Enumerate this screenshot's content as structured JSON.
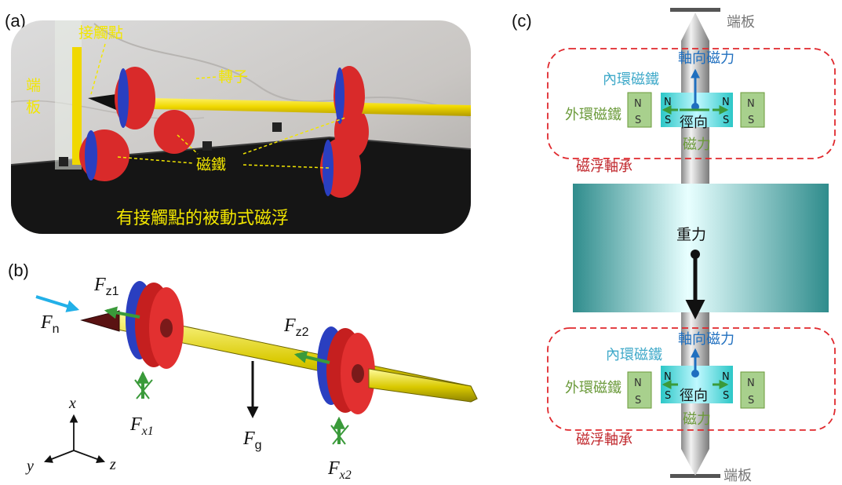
{
  "panels": {
    "a": {
      "label": "(a)",
      "contact_point": "接觸點",
      "end_plate": "端板",
      "rotor": "轉子",
      "magnets": "磁鐵",
      "caption": "有接觸點的被動式磁浮"
    },
    "b": {
      "label": "(b)",
      "forces": {
        "fn_base": "F",
        "fn_sub": "n",
        "fz1_base": "F",
        "fz1_sub": "z1",
        "fz2_base": "F",
        "fz2_sub": "z2",
        "fx1_base": "F",
        "fx1_sub": "x1",
        "fx2_base": "F",
        "fx2_sub": "x2",
        "fg_base": "F",
        "fg_sub": "g"
      },
      "axes": {
        "x": "x",
        "y": "y",
        "z": "z"
      }
    },
    "c": {
      "label": "(c)",
      "end_plate_top": "端板",
      "end_plate_bottom": "端板",
      "axial_force": "軸向磁力",
      "inner_magnet": "內環磁鐵",
      "outer_magnet": "外環磁鐵",
      "radial_line1": "徑向",
      "radial_line2": "磁力",
      "bearing": "磁浮軸承",
      "gravity": "重力",
      "pole_n": "N",
      "pole_s": "S"
    }
  },
  "colors": {
    "yellow_text": "#f2e600",
    "red_dash": "#e0282d",
    "blue_arrow": "#1f6fbf",
    "green_arrow": "#3a9a3a",
    "green_text": "#6b9a3a",
    "cyan_text": "#3fa9c9",
    "bearing_text": "#c0282d",
    "gray_text": "#777777",
    "magnet_red": "#d92a2a",
    "magnet_blue": "#2a3fc0",
    "rod_yellow": "#e8d400"
  }
}
